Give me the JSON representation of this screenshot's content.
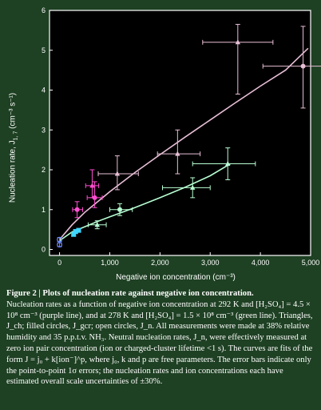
{
  "figure": {
    "ylabel": "Nucleation rate, J",
    "ylabel_sub": "1, 7",
    "ylabel_unit": " (cm⁻³ s⁻¹)",
    "xlabel": "Negative ion concentration (cm⁻³)"
  },
  "caption": {
    "title": "Figure 2 | Plots of nucleation rate against negative ion concentration.",
    "body": "Nucleation rates as a function of negative ion concentration at 292 K and [H₂SO₄] = 4.5 × 10⁸ cm⁻³ (purple line), and at 278 K and [H₂SO₄] = 1.5 × 10⁸ cm⁻³ (green line). Triangles, J_ch; filled circles, J_gcr; open circles, J_n. All measurements were made at 38% relative humidity and 35 p.p.t.v. NH₃. Neutral nucleation rates, J_n, were effectively measured at zero ion pair concentration (ion or charged-cluster lifetime <1 s). The curves are fits of the form J = j₀ + k[ion⁻]^p, where j₀, k and p are free parameters. The error bars indicate only the point-to-point 1σ errors; the nucleation rates and ion concentrations each have estimated overall scale uncertainties of ±30%."
  },
  "chart_data": {
    "type": "scatter",
    "xlim": [
      -200,
      5000
    ],
    "ylim": [
      -0.15,
      6
    ],
    "xticks": [
      0,
      1000,
      2000,
      3000,
      4000,
      5000
    ],
    "xtick_labels": [
      "0",
      "1,000",
      "2,000",
      "3,000",
      "4,000",
      "5,000"
    ],
    "yticks": [
      0,
      1,
      2,
      3,
      4,
      5,
      6
    ],
    "ytick_labels": [
      "0",
      "1",
      "2",
      "3",
      "4",
      "5",
      "6"
    ],
    "grid": false,
    "colors": {
      "purple": "#e7bfd6",
      "green": "#b8ffd3",
      "magenta": "#ff4fd1",
      "cyan": "#3fd6ff",
      "blue": "#6f8cff",
      "frame": "#ffffff",
      "panel": "#000000"
    },
    "series": [
      {
        "color": "purple",
        "points": [
          {
            "x": 350,
            "y": 1.0,
            "shape": "circle",
            "xerr": [
              90,
              110
            ],
            "yerr": [
              0.2,
              0.2
            ],
            "color": "magenta"
          },
          {
            "x": 700,
            "y": 1.3,
            "shape": "circle",
            "xerr": [
              150,
              150
            ],
            "yerr": [
              0.25,
              0.4
            ],
            "color": "magenta"
          },
          {
            "x": 650,
            "y": 1.6,
            "shape": "triangle",
            "xerr": [
              130,
              130
            ],
            "yerr": [
              0.3,
              0.4
            ],
            "color": "magenta"
          },
          {
            "x": 1150,
            "y": 1.9,
            "shape": "triangle",
            "xerr": [
              380,
              420
            ],
            "yerr": [
              0.4,
              0.45
            ],
            "color": "purple"
          },
          {
            "x": 2350,
            "y": 2.4,
            "shape": "triangle",
            "xerr": [
              400,
              450
            ],
            "yerr": [
              0.5,
              0.6
            ],
            "color": "purple"
          },
          {
            "x": 3550,
            "y": 5.2,
            "shape": "triangle",
            "xerr": [
              700,
              700
            ],
            "yerr": [
              1.3,
              0.45
            ],
            "color": "purple"
          },
          {
            "x": 4850,
            "y": 4.6,
            "shape": "circle",
            "xerr": [
              800,
              800
            ],
            "yerr": [
              1.05,
              1.0
            ],
            "color": "purple"
          }
        ],
        "fit": {
          "x": [
            0,
            250,
            500,
            1000,
            1500,
            2000,
            2500,
            3000,
            3500,
            4000,
            4500,
            4950
          ],
          "y": [
            0.25,
            0.62,
            0.93,
            1.45,
            1.93,
            2.38,
            2.82,
            3.25,
            3.68,
            4.1,
            4.5,
            5.05
          ]
        }
      },
      {
        "color": "green",
        "points": [
          {
            "x": 0,
            "y": 0.12,
            "shape": "circle",
            "xerr": [
              0,
              0
            ],
            "yerr": [
              0.05,
              0.05
            ],
            "color": "blue"
          },
          {
            "x": 0,
            "y": 0.25,
            "shape": "circle",
            "xerr": [
              0,
              0
            ],
            "yerr": [
              0.05,
              0.05
            ],
            "color": "blue"
          },
          {
            "x": 280,
            "y": 0.38,
            "shape": "square",
            "xerr": [
              30,
              30
            ],
            "yerr": [
              0.05,
              0.05
            ],
            "color": "cyan"
          },
          {
            "x": 320,
            "y": 0.45,
            "shape": "square",
            "xerr": [
              30,
              30
            ],
            "yerr": [
              0.05,
              0.05
            ],
            "color": "cyan"
          },
          {
            "x": 380,
            "y": 0.48,
            "shape": "circle",
            "xerr": [
              40,
              40
            ],
            "yerr": [
              0.05,
              0.05
            ],
            "color": "cyan"
          },
          {
            "x": 750,
            "y": 0.62,
            "shape": "triangle",
            "xerr": [
              180,
              180
            ],
            "yerr": [
              0.1,
              0.1
            ],
            "color": "green"
          },
          {
            "x": 1200,
            "y": 1.0,
            "shape": "circle",
            "xerr": [
              200,
              250
            ],
            "yerr": [
              0.15,
              0.15
            ],
            "color": "green"
          },
          {
            "x": 2650,
            "y": 1.55,
            "shape": "triangle",
            "xerr": [
              600,
              350
            ],
            "yerr": [
              0.25,
              0.25
            ],
            "color": "green"
          },
          {
            "x": 3350,
            "y": 2.15,
            "shape": "triangle",
            "xerr": [
              700,
              550
            ],
            "yerr": [
              0.4,
              0.4
            ],
            "color": "green"
          }
        ],
        "fit": {
          "x": [
            0,
            250,
            500,
            750,
            1000,
            1500,
            2000,
            2500,
            3000,
            3400
          ],
          "y": [
            0.22,
            0.44,
            0.57,
            0.7,
            0.82,
            1.05,
            1.3,
            1.56,
            1.85,
            2.15
          ]
        }
      }
    ]
  }
}
